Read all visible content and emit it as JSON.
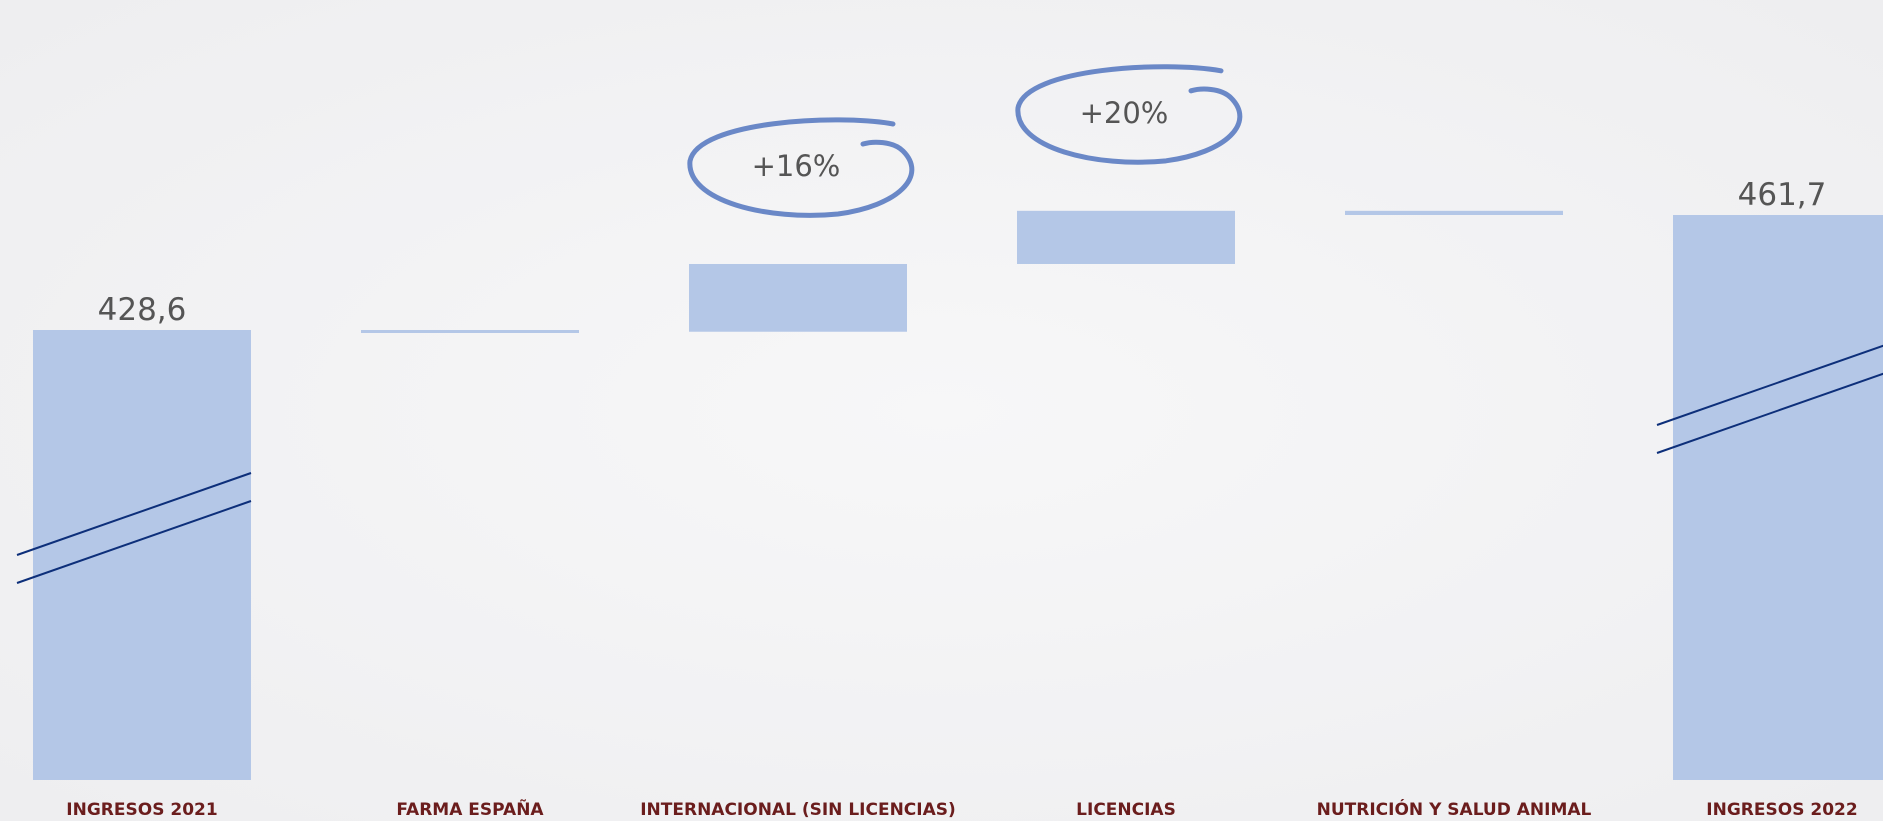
{
  "chart_data": {
    "type": "waterfall",
    "categories": [
      "INGRESOS 2021",
      "FARMA ESPAÑA",
      "INTERNACIONAL (SIN LICENCIAS)",
      "LICENCIAS",
      "NUTRICIÓN Y SALUD ANIMAL",
      "INGRESOS 2022"
    ],
    "values": [
      428.6,
      -0.5,
      19.5,
      15.3,
      -1.2,
      461.7
    ],
    "value_labels": [
      "428,6",
      null,
      null,
      null,
      null,
      "461,7"
    ],
    "annotations": [
      "+16%",
      "+20%"
    ],
    "color": "#b4c7e7"
  }
}
